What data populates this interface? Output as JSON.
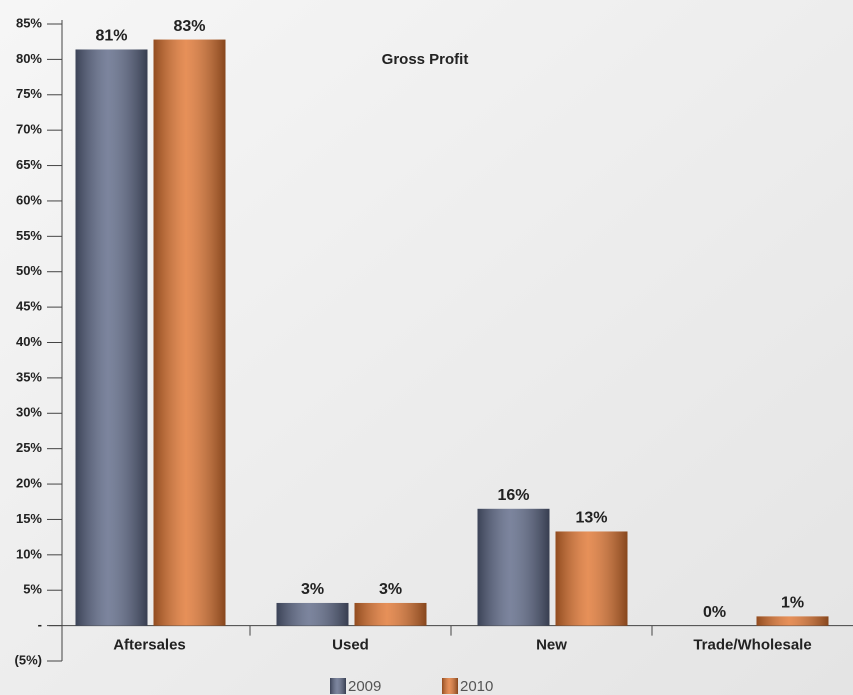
{
  "chart_data": {
    "type": "bar",
    "title": "Gross Profit",
    "categories": [
      "Aftersales",
      "Used",
      "New",
      "Trade/Wholesale"
    ],
    "series": [
      {
        "name": "2009",
        "color": "#5b6685",
        "values": [
          81.4,
          3.2,
          16.5,
          0
        ],
        "value_labels": [
          "81%",
          "3%",
          "16%",
          "0%"
        ]
      },
      {
        "name": "2010",
        "color": "#e0742f",
        "values": [
          82.8,
          3.2,
          13.3,
          1.3
        ],
        "value_labels": [
          "83%",
          "3%",
          "13%",
          "1%"
        ]
      }
    ],
    "ylim": [
      -5,
      85
    ],
    "yticks": [
      {
        "value": -5,
        "label": "(5%)"
      },
      {
        "value": 0,
        "label": "-"
      },
      {
        "value": 5,
        "label": "5%"
      },
      {
        "value": 10,
        "label": "10%"
      },
      {
        "value": 15,
        "label": "15%"
      },
      {
        "value": 20,
        "label": "20%"
      },
      {
        "value": 25,
        "label": "25%"
      },
      {
        "value": 30,
        "label": "30%"
      },
      {
        "value": 35,
        "label": "35%"
      },
      {
        "value": 40,
        "label": "40%"
      },
      {
        "value": 45,
        "label": "45%"
      },
      {
        "value": 50,
        "label": "50%"
      },
      {
        "value": 55,
        "label": "55%"
      },
      {
        "value": 60,
        "label": "60%"
      },
      {
        "value": 65,
        "label": "65%"
      },
      {
        "value": 70,
        "label": "70%"
      },
      {
        "value": 75,
        "label": "75%"
      },
      {
        "value": 80,
        "label": "80%"
      },
      {
        "value": 85,
        "label": "85%"
      }
    ],
    "grid": false,
    "legend": "bottom"
  }
}
